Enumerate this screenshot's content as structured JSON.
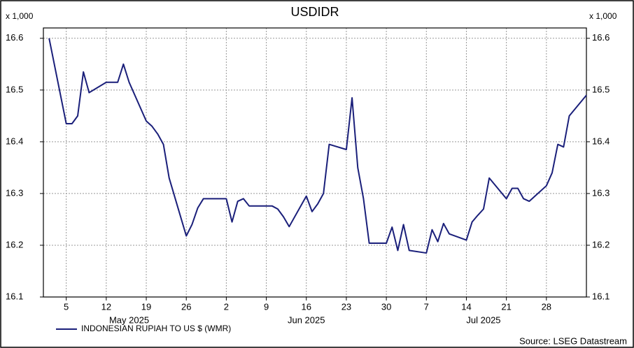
{
  "chart_data": {
    "type": "line",
    "title": "USDIDR",
    "y_unit": "x 1,000",
    "source": "Source: LSEG Datastream",
    "grid": true,
    "ylim": [
      16.1,
      16.62
    ],
    "yticks": [
      16.1,
      16.2,
      16.3,
      16.4,
      16.5,
      16.6
    ],
    "xlim": [
      "2025-05-01",
      "2025-08-04"
    ],
    "xticks": [
      {
        "value": "2025-05-05",
        "label": "5"
      },
      {
        "value": "2025-05-12",
        "label": "12"
      },
      {
        "value": "2025-05-19",
        "label": "19"
      },
      {
        "value": "2025-05-26",
        "label": "26"
      },
      {
        "value": "2025-06-02",
        "label": "2"
      },
      {
        "value": "2025-06-09",
        "label": "9"
      },
      {
        "value": "2025-06-16",
        "label": "16"
      },
      {
        "value": "2025-06-23",
        "label": "23"
      },
      {
        "value": "2025-06-30",
        "label": "30"
      },
      {
        "value": "2025-07-07",
        "label": "7"
      },
      {
        "value": "2025-07-14",
        "label": "14"
      },
      {
        "value": "2025-07-21",
        "label": "21"
      },
      {
        "value": "2025-07-28",
        "label": "28"
      }
    ],
    "month_ticks": [
      {
        "value": "2025-05-16",
        "label": "May 2025"
      },
      {
        "value": "2025-06-16",
        "label": "Jun 2025"
      },
      {
        "value": "2025-07-17",
        "label": "Jul 2025"
      }
    ],
    "x": [
      "2025-05-02",
      "2025-05-05",
      "2025-05-06",
      "2025-05-07",
      "2025-05-08",
      "2025-05-09",
      "2025-05-12",
      "2025-05-13",
      "2025-05-14",
      "2025-05-15",
      "2025-05-16",
      "2025-05-19",
      "2025-05-20",
      "2025-05-21",
      "2025-05-22",
      "2025-05-23",
      "2025-05-26",
      "2025-05-27",
      "2025-05-28",
      "2025-05-29",
      "2025-05-30",
      "2025-06-02",
      "2025-06-03",
      "2025-06-04",
      "2025-06-05",
      "2025-06-06",
      "2025-06-09",
      "2025-06-10",
      "2025-06-11",
      "2025-06-12",
      "2025-06-13",
      "2025-06-16",
      "2025-06-17",
      "2025-06-18",
      "2025-06-19",
      "2025-06-20",
      "2025-06-23",
      "2025-06-24",
      "2025-06-25",
      "2025-06-26",
      "2025-06-27",
      "2025-06-30",
      "2025-07-01",
      "2025-07-02",
      "2025-07-03",
      "2025-07-04",
      "2025-07-07",
      "2025-07-08",
      "2025-07-09",
      "2025-07-10",
      "2025-07-11",
      "2025-07-14",
      "2025-07-15",
      "2025-07-16",
      "2025-07-17",
      "2025-07-18",
      "2025-07-21",
      "2025-07-22",
      "2025-07-23",
      "2025-07-24",
      "2025-07-25",
      "2025-07-28",
      "2025-07-29",
      "2025-07-30",
      "2025-07-31",
      "2025-08-01",
      "2025-08-04"
    ],
    "series": [
      {
        "name": "INDONESIAN RUPIAH TO US $ (WMR)",
        "color": "#1a1f7a",
        "values": [
          16.6,
          16.435,
          16.435,
          16.45,
          16.535,
          16.495,
          16.515,
          16.515,
          16.515,
          16.55,
          16.515,
          16.44,
          16.43,
          16.415,
          16.395,
          16.33,
          16.218,
          16.24,
          16.272,
          16.29,
          16.29,
          16.29,
          16.245,
          16.285,
          16.29,
          16.276,
          16.276,
          16.276,
          16.27,
          16.255,
          16.236,
          16.295,
          16.265,
          16.28,
          16.3,
          16.395,
          16.385,
          16.485,
          16.35,
          16.29,
          16.204,
          16.204,
          16.235,
          16.19,
          16.24,
          16.19,
          16.185,
          16.23,
          16.207,
          16.242,
          16.222,
          16.21,
          16.245,
          16.258,
          16.27,
          16.33,
          16.29,
          16.31,
          16.31,
          16.29,
          16.285,
          16.315,
          16.34,
          16.395,
          16.39,
          16.45,
          16.49
        ]
      }
    ]
  }
}
